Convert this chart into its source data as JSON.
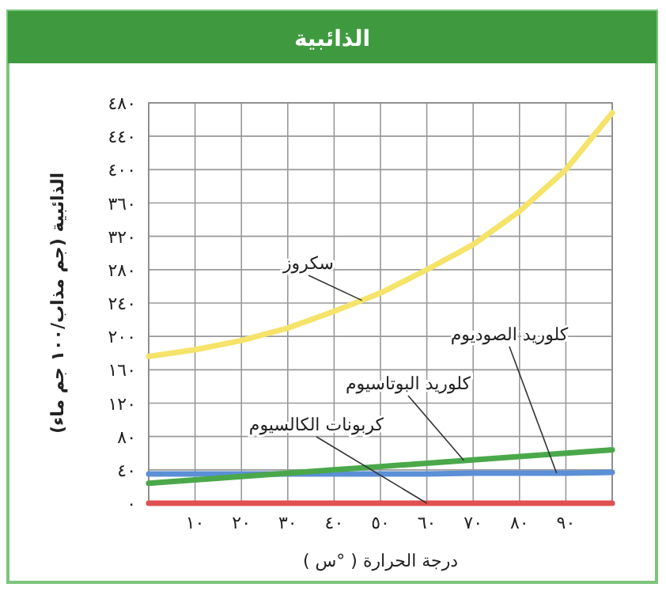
{
  "chart_data": {
    "type": "line",
    "title": "الذائبية",
    "xlabel": "درجة الحرارة ( °س )",
    "ylabel": "الذائبية (جم مذاب/١٠٠ جم ماء)",
    "x": [
      0,
      10,
      20,
      30,
      40,
      50,
      60,
      70,
      80,
      90,
      100
    ],
    "series": [
      {
        "name": "سكروز",
        "color": "#f5e36a",
        "values": [
          176,
          184,
          195,
          210,
          230,
          252,
          280,
          310,
          350,
          400,
          468
        ]
      },
      {
        "name": "كلوريد الصوديوم",
        "color": "#5b8fd6",
        "values": [
          35,
          35,
          35,
          35,
          35,
          35,
          35,
          36,
          36,
          36,
          37
        ]
      },
      {
        "name": "كلوريد البوتاسيوم",
        "color": "#4aa84a",
        "values": [
          24,
          28,
          32,
          36,
          40,
          44,
          48,
          52,
          56,
          60,
          64
        ]
      },
      {
        "name": "كربونات الكالسيوم",
        "color": "#e05050",
        "values": [
          0,
          0,
          0,
          0,
          0,
          0,
          0,
          0,
          0,
          0,
          0
        ]
      }
    ],
    "xlim": [
      0,
      100
    ],
    "xticks": [
      {
        "value": 0,
        "label": null
      },
      {
        "value": 10,
        "label": "١٠"
      },
      {
        "value": 20,
        "label": "٢٠"
      },
      {
        "value": 30,
        "label": "٣٠"
      },
      {
        "value": 40,
        "label": "٤٠"
      },
      {
        "value": 50,
        "label": "٥٠"
      },
      {
        "value": 60,
        "label": "٦٠"
      },
      {
        "value": 70,
        "label": "٧٠"
      },
      {
        "value": 80,
        "label": "٨٠"
      },
      {
        "value": 90,
        "label": "٩٠"
      },
      {
        "value": 100,
        "label": null
      }
    ],
    "ylim": [
      0,
      480
    ],
    "yticks": [
      {
        "value": 0,
        "label": "٠"
      },
      {
        "value": 40,
        "label": "٤٠"
      },
      {
        "value": 80,
        "label": "٨٠"
      },
      {
        "value": 120,
        "label": "١٢٠"
      },
      {
        "value": 160,
        "label": "١٦٠"
      },
      {
        "value": 200,
        "label": "٢٠٠"
      },
      {
        "value": 240,
        "label": "٢٤٠"
      },
      {
        "value": 280,
        "label": "٢٨٠"
      },
      {
        "value": 320,
        "label": "٣٢٠"
      },
      {
        "value": 360,
        "label": "٣٦٠"
      },
      {
        "value": 400,
        "label": "٤٠٠"
      },
      {
        "value": 440,
        "label": "٤٤٠"
      },
      {
        "value": 480,
        "label": "٤٨٠"
      }
    ],
    "grid": true,
    "marker": "none",
    "line_style": "solid"
  }
}
